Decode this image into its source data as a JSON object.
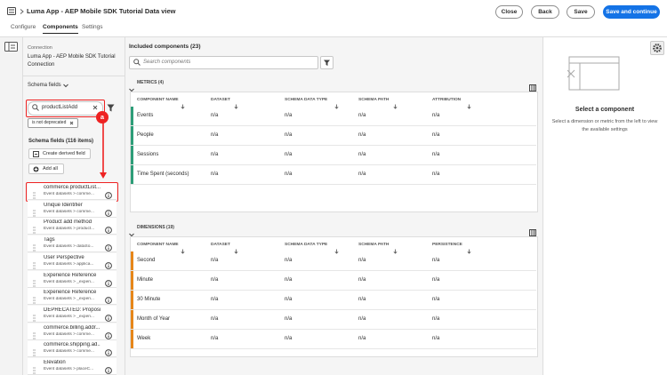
{
  "header": {
    "title": "Luma App - AEP Mobile SDK Tutorial Data view",
    "buttons": [
      "Close",
      "Back",
      "Save",
      "Save and continue"
    ]
  },
  "tabs": [
    "Configure",
    "Components",
    "Settings"
  ],
  "left_panel": {
    "connection_label": "Connection",
    "connection_name": "Luma App - AEP Mobile SDK Tutorial Connection",
    "schema_dropdown": "Schema fields",
    "search_value": "productListAdd",
    "annotation": "a",
    "filter_tag": "is not deprecated",
    "fields_heading": "Schema fields (116 items)",
    "create_derived_field": "Create derived field",
    "add_all": "Add all",
    "fields": [
      {
        "name": "commerce.productList...",
        "path": "Event datasets > comme..."
      },
      {
        "name": "Unique Identifier",
        "path": "Event datasets > comme..."
      },
      {
        "name": "Product add method",
        "path": "Event datasets > product..."
      },
      {
        "name": "Tags",
        "path": "Event datasets > dataSo..."
      },
      {
        "name": "User Perspective",
        "path": "Event datasets > applica..."
      },
      {
        "name": "Experience Reference",
        "path": "Event datasets > _experi..."
      },
      {
        "name": "Experience Reference",
        "path": "Event datasets > _experi..."
      },
      {
        "name": "DEPRECATED: Proposi...",
        "path": "Event datasets > _experi..."
      },
      {
        "name": "commerce.billing.addr...",
        "path": "Event datasets > comme..."
      },
      {
        "name": "commerce.shipping.ad...",
        "path": "Event datasets > comme..."
      },
      {
        "name": "Elevation",
        "path": "Event datasets > placeC..."
      }
    ]
  },
  "main": {
    "heading": "Included components (23)",
    "search_placeholder": "Search components",
    "sections": [
      {
        "title": "METRICS (4)",
        "columns": [
          "COMPONENT NAME",
          "DATASET",
          "SCHEMA DATA TYPE",
          "SCHEMA PATH",
          "ATTRIBUTION"
        ],
        "rows": [
          [
            "Events",
            "n/a",
            "n/a",
            "n/a",
            "n/a"
          ],
          [
            "People",
            "n/a",
            "n/a",
            "n/a",
            "n/a"
          ],
          [
            "Sessions",
            "n/a",
            "n/a",
            "n/a",
            "n/a"
          ],
          [
            "Time Spent (seconds)",
            "n/a",
            "n/a",
            "n/a",
            "n/a"
          ]
        ]
      },
      {
        "title": "DIMENSIONS (19)",
        "columns": [
          "COMPONENT NAME",
          "DATASET",
          "SCHEMA DATA TYPE",
          "SCHEMA PATH",
          "PERSISTENCE"
        ],
        "rows": [
          [
            "Second",
            "n/a",
            "n/a",
            "n/a",
            "n/a"
          ],
          [
            "Minute",
            "n/a",
            "n/a",
            "n/a",
            "n/a"
          ],
          [
            "30 Minute",
            "n/a",
            "n/a",
            "n/a",
            "n/a"
          ],
          [
            "Month of Year",
            "n/a",
            "n/a",
            "n/a",
            "n/a"
          ],
          [
            "Week",
            "n/a",
            "n/a",
            "n/a",
            "n/a"
          ]
        ]
      }
    ]
  },
  "right_panel": {
    "title": "Select a component",
    "description": "Select a dimension or metric from the left to view the available settings"
  }
}
